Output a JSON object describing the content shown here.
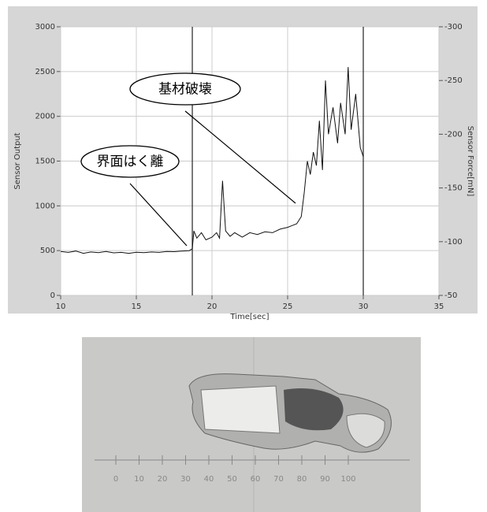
{
  "chart_data": {
    "type": "line",
    "x_label": "Time[sec]",
    "y_label": "Sensor Output",
    "y2_label": "Sensor Force[mN]",
    "x": [
      10,
      10.5,
      11,
      11.5,
      12,
      12.5,
      13,
      13.5,
      14,
      14.5,
      15,
      15.5,
      16,
      16.5,
      17,
      17.5,
      18,
      18.5,
      18.7,
      18.8,
      19,
      19.3,
      19.6,
      20,
      20.3,
      20.5,
      20.7,
      20.9,
      21.2,
      21.5,
      22,
      22.5,
      23,
      23.5,
      24,
      24.5,
      25,
      25.3,
      25.6,
      25.9,
      26.1,
      26.3,
      26.5,
      26.7,
      26.9,
      27.1,
      27.3,
      27.5,
      27.7,
      28,
      28.3,
      28.5,
      28.8,
      29,
      29.2,
      29.5,
      29.8,
      30
    ],
    "values": [
      490,
      480,
      495,
      470,
      485,
      478,
      490,
      475,
      480,
      470,
      482,
      478,
      485,
      480,
      490,
      488,
      495,
      500,
      520,
      720,
      640,
      700,
      620,
      650,
      700,
      640,
      1280,
      720,
      660,
      700,
      650,
      700,
      680,
      710,
      700,
      740,
      760,
      780,
      800,
      880,
      1150,
      1500,
      1350,
      1600,
      1450,
      1950,
      1400,
      2400,
      1800,
      2100,
      1700,
      2150,
      1800,
      2550,
      1850,
      2250,
      1650,
      1550
    ],
    "color": "#111111",
    "xlim": [
      10,
      35
    ],
    "xticks": [
      10,
      15,
      20,
      25,
      30,
      35
    ],
    "ylim": [
      0,
      3000
    ],
    "yticks": [
      0,
      500,
      1000,
      1500,
      2000,
      2500,
      3000
    ],
    "y2lim": [
      -50,
      -300
    ],
    "y2ticks": [
      -300,
      -250,
      -200,
      -150,
      -100,
      -50
    ],
    "grid": true,
    "markers": [
      18.7,
      30
    ],
    "annotations": [
      "界面はく離",
      "基材破壊"
    ]
  },
  "photo": {
    "scale_labels": [
      0,
      10,
      20,
      30,
      40,
      50,
      60,
      70,
      80,
      90,
      100
    ]
  }
}
